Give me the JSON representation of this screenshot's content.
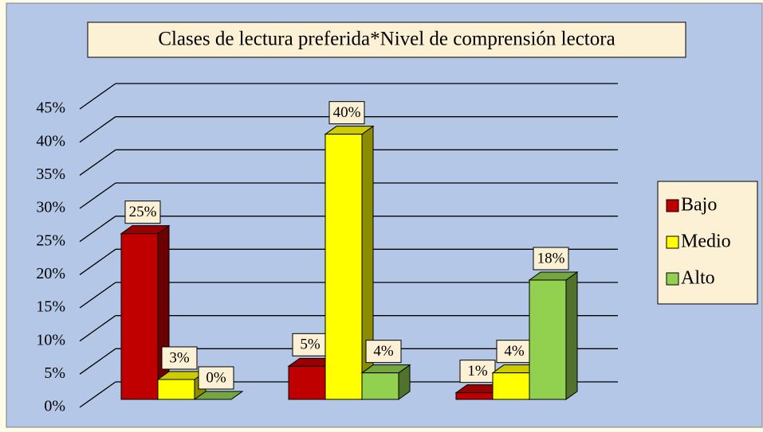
{
  "chart_data": {
    "type": "bar3d",
    "title": "Clases de lectura preferida*Nivel de comprensión lectora",
    "categories": [
      null,
      null,
      null
    ],
    "series": [
      {
        "name": "Bajo",
        "color": "#c00000",
        "values": [
          25,
          5,
          1
        ],
        "value_labels": [
          "25%",
          "5%",
          "1%"
        ]
      },
      {
        "name": "Medio",
        "color": "#ffff00",
        "values": [
          3,
          40,
          4
        ],
        "value_labels": [
          "3%",
          "40%",
          "4%"
        ]
      },
      {
        "name": "Alto",
        "color": "#92d050",
        "values": [
          0,
          4,
          18
        ],
        "value_labels": [
          "0%",
          "4%",
          "18%"
        ]
      }
    ],
    "ylim": [
      0,
      45
    ],
    "yticks": [
      {
        "value": 0,
        "label": "0%"
      },
      {
        "value": 5,
        "label": "5%"
      },
      {
        "value": 10,
        "label": "10%"
      },
      {
        "value": 15,
        "label": "15%"
      },
      {
        "value": 20,
        "label": "20%"
      },
      {
        "value": 25,
        "label": "25%"
      },
      {
        "value": 30,
        "label": "30%"
      },
      {
        "value": 35,
        "label": "35%"
      },
      {
        "value": 40,
        "label": "40%"
      },
      {
        "value": 45,
        "label": "45%"
      }
    ],
    "grid": true,
    "legend": "right"
  }
}
